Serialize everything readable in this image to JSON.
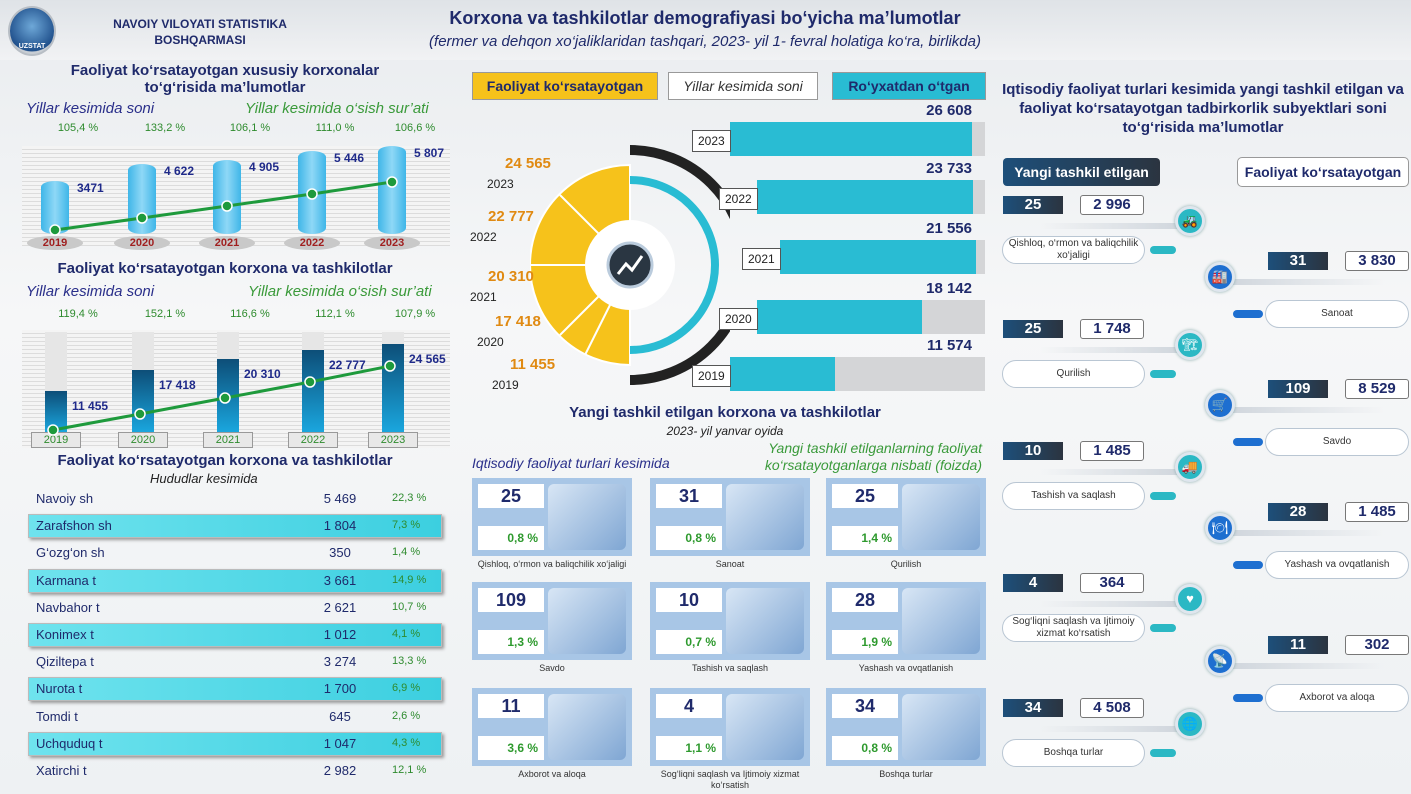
{
  "header": {
    "logo_text": "UZSTAT",
    "org": "NAVOIY VILOYATI STATISTIKA BOSHQARMASI",
    "title": "Korxona va tashkilotlar demografiyasi bo‘yicha ma’lumotlar",
    "subtitle": "(fermer va dehqon xo‘jaliklaridan tashqari, 2023- yil 1- fevral holatiga ko‘ra, birlikda)"
  },
  "colors": {
    "navy": "#1f2a6b",
    "green": "#2e8b2e",
    "cyan": "#29bcd3",
    "yellow": "#f6c21b",
    "orange": "#e08a12"
  },
  "private": {
    "title": "Faoliyat ko‘rsatayotgan xususiy korxonalar to‘g‘risida ma’lumotlar",
    "sub_left": "Yillar kesimida soni",
    "sub_right": "Yillar kesimida o‘sish sur’ati",
    "years": [
      "2019",
      "2020",
      "2021",
      "2022",
      "2023"
    ],
    "values": [
      "3471",
      "4 622",
      "4 905",
      "5 446",
      "5 807"
    ],
    "nums": [
      3471,
      4622,
      4905,
      5446,
      5807
    ],
    "growth": [
      "105,4 %",
      "133,2 %",
      "106,1 %",
      "111,0 %",
      "106,6 %"
    ]
  },
  "active": {
    "title": "Faoliyat ko‘rsatayotgan korxona va tashkilotlar",
    "sub_left": "Yillar kesimida soni",
    "sub_right": "Yillar kesimida o‘sish sur’ati",
    "years": [
      "2019",
      "2020",
      "2021",
      "2022",
      "2023"
    ],
    "values": [
      "11 455",
      "17 418",
      "20 310",
      "22 777",
      "24 565"
    ],
    "nums": [
      11455,
      17418,
      20310,
      22777,
      24565
    ],
    "growth": [
      "119,4 %",
      "152,1 %",
      "116,6 %",
      "112,1 %",
      "107,9 %"
    ]
  },
  "regions": {
    "title": "Faoliyat ko‘rsatayotgan korxona va tashkilotlar",
    "subtitle": "Hududlar kesimida",
    "rows": [
      {
        "name": "Navoiy sh",
        "value": "5 469",
        "pct": "22,3 %"
      },
      {
        "name": "Zarafshon sh",
        "value": "1 804",
        "pct": "7,3 %"
      },
      {
        "name": "G‘ozg‘on sh",
        "value": "350",
        "pct": "1,4 %"
      },
      {
        "name": "Karmana t",
        "value": "3 661",
        "pct": "14,9 %"
      },
      {
        "name": "Navbahor t",
        "value": "2 621",
        "pct": "10,7 %"
      },
      {
        "name": "Konimex t",
        "value": "1 012",
        "pct": "4,1 %"
      },
      {
        "name": "Qiziltepa t",
        "value": "3 274",
        "pct": "13,3 %"
      },
      {
        "name": "Nurota t",
        "value": "1 700",
        "pct": "6,9 %"
      },
      {
        "name": "Tomdi t",
        "value": "645",
        "pct": "2,6 %"
      },
      {
        "name": "Uchquduq t",
        "value": "1 047",
        "pct": "4,3 %"
      },
      {
        "name": "Xatirchi t",
        "value": "2 982",
        "pct": "12,1 %"
      }
    ]
  },
  "center": {
    "tab_active": "Faoliyat ko‘rsatayotgan",
    "tab_years": "Yillar kesimida soni",
    "tab_registered": "Ro‘yxatdan o‘tgan",
    "years": [
      "2023",
      "2022",
      "2021",
      "2020",
      "2019"
    ],
    "registered": [
      "26 608",
      "23 733",
      "21 556",
      "18 142",
      "11 574"
    ],
    "registered_nums": [
      26608,
      23733,
      21556,
      18142,
      11574
    ],
    "active": [
      "24 565",
      "22 777",
      "20 310",
      "17 418",
      "11 455"
    ],
    "new_title": "Yangi tashkil etilgan korxona va tashkilotlar",
    "new_subtitle": "2023- yil yanvar oyida",
    "left_caption": "Iqtisodiy faoliyat turlari kesimida",
    "right_caption": "Yangi tashkil etilganlarning faoliyat ko‘rsatayotganlarga nisbati (foizda)",
    "cards": [
      {
        "n": "25",
        "p": "0,8 %",
        "label": "Qishloq, o‘rmon va baliqchilik xo‘jaligi"
      },
      {
        "n": "31",
        "p": "0,8 %",
        "label": "Sanoat"
      },
      {
        "n": "25",
        "p": "1,4 %",
        "label": "Qurilish"
      },
      {
        "n": "109",
        "p": "1,3 %",
        "label": "Savdo"
      },
      {
        "n": "10",
        "p": "0,7 %",
        "label": "Tashish va saqlash"
      },
      {
        "n": "28",
        "p": "1,9 %",
        "label": "Yashash va ovqatlanish"
      },
      {
        "n": "11",
        "p": "3,6 %",
        "label": "Axborot va aloqa"
      },
      {
        "n": "4",
        "p": "1,1 %",
        "label": "Sog‘liqni saqlash va Ijtimoiy xizmat ko‘rsatish"
      },
      {
        "n": "34",
        "p": "0,8 %",
        "label": "Boshqa turlar"
      }
    ]
  },
  "right": {
    "title": "Iqtisodiy faoliyat turlari kesimida yangi tashkil etilgan va faoliyat ko‘rsatayotgan tadbirkorlik subyektlari soni to‘g‘risida ma’lumotlar",
    "hdr_new": "Yangi tashkil etilgan",
    "hdr_active": "Faoliyat ko‘rsatayotgan",
    "items": [
      {
        "side": "left",
        "icon": "tractor",
        "new": "25",
        "active": "2 996",
        "label": "Qishloq, o‘rmon va baliqchilik xo‘jaligi"
      },
      {
        "side": "right",
        "icon": "factory",
        "new": "31",
        "active": "3 830",
        "label": "Sanoat"
      },
      {
        "side": "left",
        "icon": "crane",
        "new": "25",
        "active": "1 748",
        "label": "Qurilish"
      },
      {
        "side": "right",
        "icon": "cart",
        "new": "109",
        "active": "8 529",
        "label": "Savdo"
      },
      {
        "side": "left",
        "icon": "truck",
        "new": "10",
        "active": "1 485",
        "label": "Tashish va saqlash"
      },
      {
        "side": "right",
        "icon": "dish",
        "new": "28",
        "active": "1 485",
        "label": "Yashash va ovqatlanish"
      },
      {
        "side": "left",
        "icon": "heart",
        "new": "4",
        "active": "364",
        "label": "Sog‘liqni saqlash va Ijtimoiy xizmat ko‘rsatish"
      },
      {
        "side": "right",
        "icon": "antenna",
        "new": "11",
        "active": "302",
        "label": "Axborot va aloqa"
      },
      {
        "side": "left",
        "icon": "globe",
        "new": "34",
        "active": "4 508",
        "label": "Boshqa turlar"
      }
    ]
  }
}
